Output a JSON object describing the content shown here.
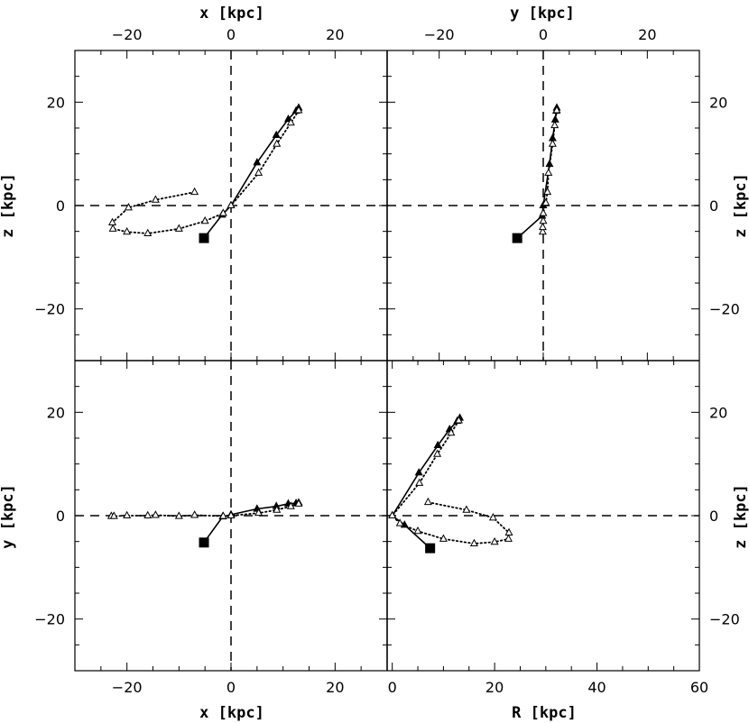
{
  "chart_data": [
    {
      "type": "line",
      "panel": "top-left",
      "xlabel": "x [kpc]",
      "ylabel": "z [kpc]",
      "xlim": [
        -30,
        30
      ],
      "ylim": [
        -30,
        30
      ],
      "xticks": [
        -20,
        0,
        20
      ],
      "yticks": [
        -20,
        0,
        20
      ],
      "dashed_axes": true,
      "series": [
        {
          "style": "solid",
          "marker": "filled-triangle",
          "points": [
            [
              -5.2,
              -6.3
            ],
            [
              -1.7,
              -1.8
            ],
            [
              0,
              0
            ],
            [
              5,
              8.3
            ],
            [
              8.7,
              13.6
            ],
            [
              11,
              16.7
            ],
            [
              12.5,
              18.3
            ],
            [
              13,
              18.9
            ]
          ]
        },
        {
          "style": "dotted",
          "marker": "open-triangle",
          "points": [
            [
              -7,
              2.6
            ],
            [
              -14.5,
              1.1
            ],
            [
              -19.7,
              -0.4
            ],
            [
              -22.8,
              -3.3
            ],
            [
              -22.7,
              -4.5
            ],
            [
              -20,
              -5.1
            ],
            [
              -16,
              -5.4
            ],
            [
              -10,
              -4.5
            ],
            [
              -5,
              -3
            ],
            [
              -1.5,
              -1.5
            ],
            [
              0,
              0
            ],
            [
              5.3,
              6.3
            ],
            [
              8.8,
              11.9
            ],
            [
              11.5,
              16
            ],
            [
              13,
              18.4
            ]
          ]
        }
      ],
      "endpoint": [
        -5.2,
        -6.3
      ]
    },
    {
      "type": "line",
      "panel": "top-right",
      "xlabel": "y [kpc]",
      "ylabel": "z [kpc]",
      "xlim": [
        -30,
        30
      ],
      "ylim": [
        -30,
        30
      ],
      "xticks": [
        -20,
        0,
        20
      ],
      "yticks": [
        -20,
        0,
        20
      ],
      "dashed_axes": true,
      "series": [
        {
          "style": "solid",
          "marker": "filled-triangle",
          "points": [
            [
              -5,
              -6.3
            ],
            [
              -0.2,
              -2
            ],
            [
              0,
              0
            ],
            [
              1.2,
              8
            ],
            [
              1.8,
              13
            ],
            [
              2.3,
              16.6
            ],
            [
              2.5,
              18.3
            ],
            [
              2.6,
              18.9
            ]
          ]
        },
        {
          "style": "dotted",
          "marker": "open-triangle",
          "points": [
            [
              -0.1,
              -5.1
            ],
            [
              -0.1,
              -4.2
            ],
            [
              0,
              -3
            ],
            [
              0,
              -1.5
            ],
            [
              0.5,
              0.5
            ],
            [
              0.8,
              2.6
            ],
            [
              1.0,
              6.3
            ],
            [
              1.8,
              11.9
            ],
            [
              2.2,
              15.5
            ],
            [
              2.6,
              18.4
            ]
          ]
        }
      ],
      "endpoint": [
        -5,
        -6.3
      ]
    },
    {
      "type": "line",
      "panel": "bottom-left",
      "xlabel": "x [kpc]",
      "ylabel": "y [kpc]",
      "xlim": [
        -30,
        30
      ],
      "ylim": [
        -30,
        30
      ],
      "xticks": [
        -20,
        0,
        20
      ],
      "yticks": [
        -20,
        0,
        20
      ],
      "dashed_axes": true,
      "series": [
        {
          "style": "solid",
          "marker": "filled-triangle",
          "points": [
            [
              -5.2,
              -5.2
            ],
            [
              -1.6,
              -0.2
            ],
            [
              0,
              0.2
            ],
            [
              5,
              1.3
            ],
            [
              8.7,
              1.8
            ],
            [
              11,
              2.3
            ],
            [
              12.5,
              2.4
            ],
            [
              13,
              2.5
            ]
          ]
        },
        {
          "style": "dotted",
          "marker": "open-triangle",
          "points": [
            [
              -23,
              -0.1
            ],
            [
              -22.5,
              -0.1
            ],
            [
              -20,
              0
            ],
            [
              -16,
              0
            ],
            [
              -14.5,
              0.1
            ],
            [
              -10,
              -0.1
            ],
            [
              -7,
              0.1
            ],
            [
              -1.5,
              -0.1
            ],
            [
              0,
              0
            ],
            [
              5.3,
              0.5
            ],
            [
              8.8,
              1.1
            ],
            [
              11.5,
              1.8
            ],
            [
              13,
              2.3
            ]
          ]
        }
      ],
      "endpoint": [
        -5.2,
        -5.2
      ]
    },
    {
      "type": "line",
      "panel": "bottom-right",
      "xlabel": "R [kpc]",
      "ylabel": "z [kpc]",
      "xlim": [
        -1,
        60
      ],
      "ylim": [
        -30,
        30
      ],
      "xticks": [
        0,
        20,
        40,
        60
      ],
      "yticks": [
        -20,
        0,
        20
      ],
      "dashed_axes": true,
      "series": [
        {
          "style": "solid",
          "marker": "filled-triangle",
          "points": [
            [
              7.4,
              -6.3
            ],
            [
              2.4,
              -1.8
            ],
            [
              0,
              0
            ],
            [
              5.2,
              8.3
            ],
            [
              8.9,
              13.6
            ],
            [
              11.2,
              16.7
            ],
            [
              12.7,
              18.3
            ],
            [
              13.2,
              18.9
            ]
          ]
        },
        {
          "style": "dotted",
          "marker": "open-triangle",
          "points": [
            [
              7,
              2.6
            ],
            [
              14.5,
              1.1
            ],
            [
              19.7,
              -0.4
            ],
            [
              22.8,
              -3.3
            ],
            [
              22.7,
              -4.5
            ],
            [
              20,
              -5.1
            ],
            [
              16,
              -5.4
            ],
            [
              10,
              -4.5
            ],
            [
              5,
              -3
            ],
            [
              1.5,
              -1.5
            ],
            [
              0,
              0
            ],
            [
              5.3,
              6.3
            ],
            [
              8.8,
              11.9
            ],
            [
              11.5,
              16
            ],
            [
              13,
              18.4
            ]
          ]
        }
      ],
      "endpoint": [
        7.4,
        -6.3
      ]
    }
  ]
}
